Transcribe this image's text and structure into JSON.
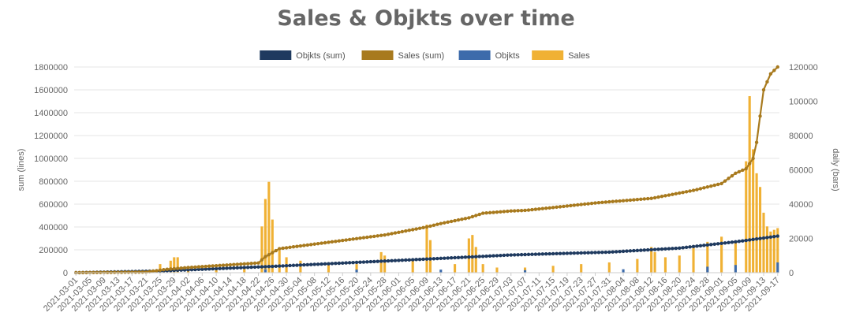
{
  "chart_data": {
    "type": "bar",
    "title": "Sales & Objkts over time",
    "left_axis_label": "sum (lines)",
    "right_axis_label": "daily (bars)",
    "left_ylim": [
      0,
      1800000
    ],
    "right_ylim": [
      0,
      120000
    ],
    "left_ticks": [
      0,
      200000,
      400000,
      600000,
      800000,
      1000000,
      1200000,
      1400000,
      1600000,
      1800000
    ],
    "right_ticks": [
      0,
      20000,
      40000,
      60000,
      80000,
      100000,
      120000
    ],
    "x_start": "2021-03-01",
    "x_end": "2021-09-17",
    "x_tick_labels": [
      "2021-03-01",
      "2021-03-05",
      "2021-03-09",
      "2021-03-13",
      "2021-03-17",
      "2021-03-21",
      "2021-03-25",
      "2021-03-29",
      "2021-04-02",
      "2021-04-06",
      "2021-04-10",
      "2021-04-14",
      "2021-04-18",
      "2021-04-22",
      "2021-04-26",
      "2021-04-30",
      "2021-05-04",
      "2021-05-08",
      "2021-05-12",
      "2021-05-16",
      "2021-05-20",
      "2021-05-24",
      "2021-05-28",
      "2021-06-01",
      "2021-06-05",
      "2021-06-09",
      "2021-06-13",
      "2021-06-17",
      "2021-06-21",
      "2021-06-25",
      "2021-06-29",
      "2021-07-03",
      "2021-07-07",
      "2021-07-11",
      "2021-07-15",
      "2021-07-19",
      "2021-07-23",
      "2021-07-27",
      "2021-07-31",
      "2021-08-04",
      "2021-08-08",
      "2021-08-12",
      "2021-08-16",
      "2021-08-20",
      "2021-08-24",
      "2021-08-28",
      "2021-09-01",
      "2021-09-05",
      "2021-09-09",
      "2021-09-13",
      "2021-09-17"
    ],
    "legend": [
      {
        "name": "Objkts (sum)",
        "color": "#1f3a5f"
      },
      {
        "name": "Sales (sum)",
        "color": "#a87a1e"
      },
      {
        "name": "Objkts",
        "color": "#3d6bab"
      },
      {
        "name": "Sales",
        "color": "#f0b134"
      }
    ],
    "series": [
      {
        "name": "Objkts (sum)",
        "kind": "line",
        "axis": "left",
        "color": "#1f3a5f",
        "points": [
          [
            "2021-03-01",
            0
          ],
          [
            "2021-03-25",
            15000
          ],
          [
            "2021-04-26",
            55000
          ],
          [
            "2021-05-20",
            90000
          ],
          [
            "2021-06-13",
            125000
          ],
          [
            "2021-07-03",
            155000
          ],
          [
            "2021-07-31",
            180000
          ],
          [
            "2021-08-20",
            215000
          ],
          [
            "2021-09-05",
            270000
          ],
          [
            "2021-09-17",
            320000
          ]
        ]
      },
      {
        "name": "Sales (sum)",
        "kind": "line",
        "axis": "left",
        "color": "#a87a1e",
        "points": [
          [
            "2021-03-01",
            0
          ],
          [
            "2021-03-21",
            5000
          ],
          [
            "2021-03-27",
            30000
          ],
          [
            "2021-04-02",
            45000
          ],
          [
            "2021-04-22",
            85000
          ],
          [
            "2021-04-24",
            140000
          ],
          [
            "2021-04-28",
            210000
          ],
          [
            "2021-05-08",
            250000
          ],
          [
            "2021-05-28",
            330000
          ],
          [
            "2021-06-09",
            400000
          ],
          [
            "2021-06-13",
            430000
          ],
          [
            "2021-06-21",
            480000
          ],
          [
            "2021-06-25",
            520000
          ],
          [
            "2021-07-03",
            540000
          ],
          [
            "2021-07-07",
            545000
          ],
          [
            "2021-07-15",
            570000
          ],
          [
            "2021-07-27",
            610000
          ],
          [
            "2021-08-12",
            650000
          ],
          [
            "2021-08-24",
            720000
          ],
          [
            "2021-09-01",
            780000
          ],
          [
            "2021-09-05",
            870000
          ],
          [
            "2021-09-08",
            910000
          ],
          [
            "2021-09-10",
            1000000
          ],
          [
            "2021-09-11",
            1140000
          ],
          [
            "2021-09-13",
            1600000
          ],
          [
            "2021-09-15",
            1740000
          ],
          [
            "2021-09-17",
            1800000
          ]
        ]
      },
      {
        "name": "Sales",
        "kind": "bar",
        "axis": "right",
        "color": "#f0b134",
        "points": [
          [
            "2021-03-25",
            5000
          ],
          [
            "2021-03-28",
            7000
          ],
          [
            "2021-03-29",
            9000
          ],
          [
            "2021-03-30",
            9000
          ],
          [
            "2021-04-02",
            3000
          ],
          [
            "2021-04-10",
            2500
          ],
          [
            "2021-04-18",
            3000
          ],
          [
            "2021-04-23",
            27000
          ],
          [
            "2021-04-24",
            43000
          ],
          [
            "2021-04-25",
            53000
          ],
          [
            "2021-04-26",
            31000
          ],
          [
            "2021-04-28",
            13000
          ],
          [
            "2021-04-30",
            9000
          ],
          [
            "2021-05-04",
            7000
          ],
          [
            "2021-05-12",
            6000
          ],
          [
            "2021-05-20",
            5000
          ],
          [
            "2021-05-27",
            12000
          ],
          [
            "2021-05-28",
            10000
          ],
          [
            "2021-06-05",
            7000
          ],
          [
            "2021-06-09",
            28000
          ],
          [
            "2021-06-10",
            19000
          ],
          [
            "2021-06-17",
            5000
          ],
          [
            "2021-06-21",
            20000
          ],
          [
            "2021-06-22",
            22000
          ],
          [
            "2021-06-23",
            15000
          ],
          [
            "2021-06-25",
            5000
          ],
          [
            "2021-06-29",
            3000
          ],
          [
            "2021-07-07",
            3000
          ],
          [
            "2021-07-15",
            4000
          ],
          [
            "2021-07-23",
            5000
          ],
          [
            "2021-07-31",
            6000
          ],
          [
            "2021-08-08",
            8000
          ],
          [
            "2021-08-12",
            15000
          ],
          [
            "2021-08-13",
            12000
          ],
          [
            "2021-08-16",
            9000
          ],
          [
            "2021-08-20",
            10000
          ],
          [
            "2021-08-24",
            16000
          ],
          [
            "2021-08-28",
            18000
          ],
          [
            "2021-09-01",
            21000
          ],
          [
            "2021-09-05",
            18000
          ],
          [
            "2021-09-08",
            65000
          ],
          [
            "2021-09-09",
            103000
          ],
          [
            "2021-09-10",
            72000
          ],
          [
            "2021-09-11",
            58000
          ],
          [
            "2021-09-12",
            50000
          ],
          [
            "2021-09-13",
            35000
          ],
          [
            "2021-09-14",
            27000
          ],
          [
            "2021-09-15",
            24000
          ],
          [
            "2021-09-16",
            25000
          ],
          [
            "2021-09-17",
            26000
          ]
        ]
      },
      {
        "name": "Objkts",
        "kind": "bar",
        "axis": "right",
        "color": "#3d6bab",
        "points": [
          [
            "2021-03-01",
            500
          ],
          [
            "2021-03-25",
            1000
          ],
          [
            "2021-04-24",
            2000
          ],
          [
            "2021-05-20",
            1800
          ],
          [
            "2021-06-13",
            1800
          ],
          [
            "2021-07-07",
            1500
          ],
          [
            "2021-08-04",
            2000
          ],
          [
            "2021-08-28",
            3500
          ],
          [
            "2021-09-05",
            4500
          ],
          [
            "2021-09-17",
            6000
          ]
        ]
      }
    ]
  }
}
